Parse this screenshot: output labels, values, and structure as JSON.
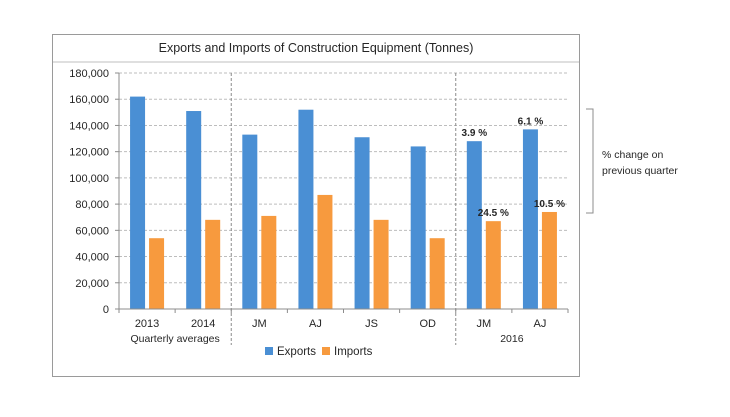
{
  "chart_data": {
    "type": "bar",
    "title": "Exports and Imports of Construction Equipment (Tonnes)",
    "categories": [
      "2013",
      "2014",
      "JM",
      "AJ",
      "JS",
      "OD",
      "JM",
      "AJ"
    ],
    "series": [
      {
        "name": "Exports",
        "color": "#4a8fd4",
        "values": [
          162000,
          151000,
          133000,
          152000,
          131000,
          124000,
          128000,
          137000
        ]
      },
      {
        "name": "Imports",
        "color": "#f79a3e",
        "values": [
          54000,
          68000,
          71000,
          87000,
          68000,
          54000,
          67000,
          74000
        ]
      }
    ],
    "ylim": [
      0,
      180000
    ],
    "yticks": [
      "0",
      "20,000",
      "40,000",
      "60,000",
      "80,000",
      "100,000",
      "120,000",
      "140,000",
      "160,000",
      "180,000"
    ],
    "grid": true,
    "groups": [
      {
        "label": "Quarterly averages",
        "categories": [
          0,
          1
        ]
      },
      {
        "label": "2016",
        "categories": [
          6,
          7
        ]
      }
    ],
    "separators_after_category": [
      1,
      5
    ],
    "data_labels": [
      {
        "series": 0,
        "category": 6,
        "text": "3.9 %"
      },
      {
        "series": 0,
        "category": 7,
        "text": "6.1 %"
      },
      {
        "series": 1,
        "category": 6,
        "text": "24.5 %"
      },
      {
        "series": 1,
        "category": 7,
        "text": "10.5 %"
      }
    ],
    "side_annotation": {
      "lines": [
        "% change on",
        "previous quarter"
      ]
    },
    "legend": "bottom"
  }
}
